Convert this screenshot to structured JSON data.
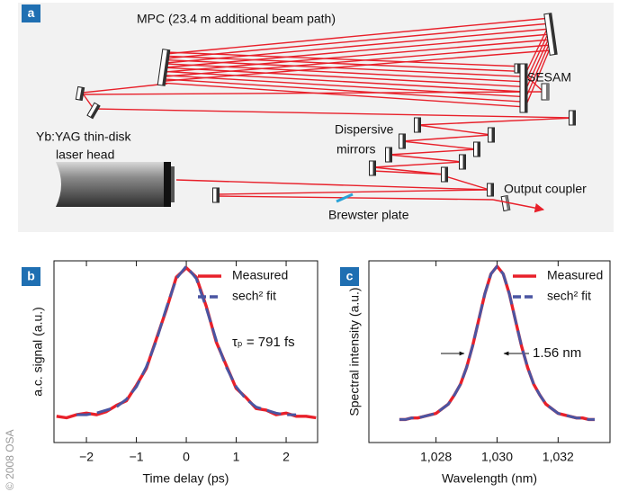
{
  "diagram": {
    "panel_label": "a",
    "mpc": "MPC (23.4 m additional beam path)",
    "sesam": "SESAM",
    "laser_head": [
      "Yb:YAG thin-disk",
      "laser head"
    ],
    "dispersive_mirrors": [
      "Dispersive",
      "mirrors"
    ],
    "output_coupler": "Output coupler",
    "brewster_plate": "Brewster plate"
  },
  "credit": "© 2008 OSA",
  "chart_data": [
    {
      "type": "line",
      "panel_label": "b",
      "xlabel": "Time delay (ps)",
      "ylabel": "a.c. signal (a.u.)",
      "annotation": "τₚ = 791 fs",
      "x": [
        -2.6,
        -2.4,
        -2.2,
        -2,
        -1.8,
        -1.6,
        -1.4,
        -1.2,
        -1,
        -0.8,
        -0.6,
        -0.4,
        -0.2,
        0,
        0.2,
        0.4,
        0.6,
        0.8,
        1,
        1.2,
        1.4,
        1.6,
        1.8,
        2,
        2.2,
        2.4,
        2.6
      ],
      "series": [
        {
          "name": "Measured",
          "color": "#e8202a",
          "dashed": false,
          "values": [
            0.03,
            0.02,
            0.04,
            0.05,
            0.04,
            0.06,
            0.1,
            0.13,
            0.23,
            0.34,
            0.53,
            0.72,
            0.93,
            0.99,
            0.93,
            0.74,
            0.51,
            0.36,
            0.21,
            0.15,
            0.08,
            0.07,
            0.04,
            0.05,
            0.03,
            0.03,
            0.02
          ]
        },
        {
          "name": "sech² fit",
          "color": "#4a55a2",
          "dashed": true,
          "values": [
            null,
            null,
            0.04,
            0.04,
            0.05,
            0.07,
            0.09,
            0.14,
            0.22,
            0.35,
            0.52,
            0.73,
            0.92,
            1.0,
            0.92,
            0.73,
            0.52,
            0.35,
            0.22,
            0.14,
            0.09,
            0.07,
            0.05,
            0.04,
            0.04,
            null,
            null
          ]
        }
      ],
      "xlim": [
        -2.65,
        2.63
      ],
      "ylim": [
        -0.14,
        1.035
      ],
      "xticks": [
        {
          "value": -2,
          "label": "−2"
        },
        {
          "value": -1,
          "label": "−1"
        },
        0,
        1,
        2
      ]
    },
    {
      "type": "line",
      "panel_label": "c",
      "xlabel": "Wavelength (nm)",
      "ylabel": "Spectral intensity (a.u.)",
      "annotation": "1.56 nm",
      "x": [
        1026.8,
        1027,
        1027.2,
        1027.4,
        1027.6,
        1027.8,
        1028,
        1028.2,
        1028.4,
        1028.6,
        1028.8,
        1029,
        1029.2,
        1029.4,
        1029.6,
        1029.8,
        1030,
        1030.2,
        1030.4,
        1030.6,
        1030.8,
        1031,
        1031.2,
        1031.4,
        1031.6,
        1031.8,
        1032,
        1032.2,
        1032.4,
        1032.6,
        1032.8,
        1033,
        1033.2
      ],
      "series": [
        {
          "name": "Measured",
          "color": "#e8202a",
          "dashed": false,
          "values": [
            0.0,
            0.0,
            0.01,
            0.01,
            0.02,
            0.03,
            0.04,
            0.07,
            0.1,
            0.16,
            0.23,
            0.34,
            0.48,
            0.65,
            0.82,
            0.95,
            1.0,
            0.95,
            0.82,
            0.65,
            0.48,
            0.34,
            0.23,
            0.16,
            0.1,
            0.07,
            0.04,
            0.03,
            0.02,
            0.01,
            0.01,
            0.0,
            0.0
          ]
        },
        {
          "name": "sech² fit",
          "color": "#4a55a2",
          "dashed": true,
          "values": [
            0.0,
            0.0,
            0.01,
            0.01,
            0.02,
            0.03,
            0.04,
            0.07,
            0.1,
            0.16,
            0.23,
            0.34,
            0.48,
            0.65,
            0.82,
            0.95,
            1.0,
            0.95,
            0.82,
            0.65,
            0.48,
            0.34,
            0.23,
            0.16,
            0.1,
            0.07,
            0.04,
            0.03,
            0.02,
            0.01,
            0.01,
            0.0,
            0.0
          ]
        }
      ],
      "xlim": [
        1025.8,
        1033.7
      ],
      "ylim": [
        -0.15,
        1.035
      ],
      "xticks": [
        {
          "value": 1028,
          "label": "1,028"
        },
        {
          "value": 1030,
          "label": "1,030"
        },
        {
          "value": 1032,
          "label": "1,032"
        }
      ]
    }
  ]
}
